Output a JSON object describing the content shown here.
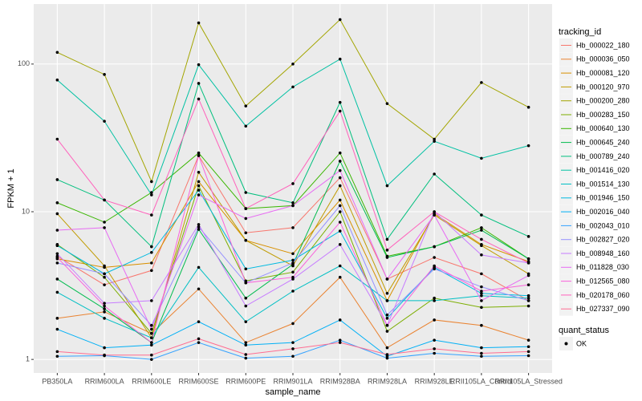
{
  "chart_data": {
    "type": "line",
    "x_label": "sample_name",
    "y_label": "FPKM + 1",
    "legend_title": "tracking_id",
    "shape_legend": {
      "title": "quant_status",
      "entries": [
        "OK"
      ]
    },
    "log_scale": true,
    "grid": true,
    "categories": [
      "PB350LA",
      "RRIM600LA",
      "RRIM600LE",
      "RRIM600SE",
      "RRIM600PE",
      "RRIM901LA",
      "RRIM928BA",
      "RRIM928LA",
      "RRIM928LE",
      "RRII105LA_Control",
      "RRII105LA_Stressed"
    ],
    "ylim": [
      0.81,
      255
    ],
    "yticks": [
      1,
      10,
      100
    ],
    "series": [
      {
        "name": "Hb_000022_180",
        "color": "#F8766D",
        "values": [
          5,
          3.2,
          4,
          24,
          7.2,
          7.8,
          17,
          3.5,
          4.9,
          3.8,
          2.5
        ]
      },
      {
        "name": "Hb_000036_050",
        "color": "#EA8331",
        "values": [
          1.9,
          2.1,
          1.5,
          3,
          1.3,
          1.75,
          3.6,
          1.2,
          1.85,
          1.7,
          1.35
        ]
      },
      {
        "name": "Hb_000081_120",
        "color": "#D89000",
        "values": [
          4.8,
          4.2,
          4.5,
          16,
          6.4,
          5.2,
          12,
          2.5,
          9.7,
          6,
          4.6
        ]
      },
      {
        "name": "Hb_000120_970",
        "color": "#C09B00",
        "values": [
          9.7,
          4.3,
          1.4,
          18.5,
          6.4,
          4.3,
          15,
          2.8,
          9.5,
          5.9,
          3.8
        ]
      },
      {
        "name": "Hb_000200_280",
        "color": "#A3A500",
        "values": [
          120,
          85,
          16,
          190,
          52,
          100,
          200,
          54,
          31,
          75,
          51
        ]
      },
      {
        "name": "Hb_000283_150",
        "color": "#7CAE00",
        "values": [
          6,
          3.6,
          1.5,
          15,
          3.4,
          3.9,
          10,
          1.55,
          2.6,
          2.25,
          2.3
        ]
      },
      {
        "name": "Hb_000640_130",
        "color": "#39B600",
        "values": [
          11.5,
          8.5,
          13.5,
          25,
          10.5,
          11,
          25,
          5,
          5.8,
          7.8,
          4.8
        ]
      },
      {
        "name": "Hb_000645_240",
        "color": "#00BB4E",
        "values": [
          3.5,
          2.2,
          1.3,
          7.6,
          2.6,
          4.4,
          22,
          4.9,
          5.8,
          7.5,
          4.8
        ]
      },
      {
        "name": "Hb_000789_240",
        "color": "#00BF7D",
        "values": [
          16.5,
          12,
          5.8,
          74,
          13.5,
          11.5,
          55,
          6.5,
          18,
          9.5,
          6.8
        ]
      },
      {
        "name": "Hb_001416_020",
        "color": "#00C1A3",
        "values": [
          78,
          41,
          13,
          99,
          38,
          70,
          108,
          15,
          30,
          23,
          28
        ]
      },
      {
        "name": "Hb_001514_130",
        "color": "#00BFC4",
        "values": [
          2.85,
          1.9,
          1.4,
          4.2,
          1.8,
          2.9,
          4.3,
          2.5,
          2.5,
          2.7,
          2.6
        ]
      },
      {
        "name": "Hb_001946_150",
        "color": "#00BAE0",
        "values": [
          5.9,
          3.8,
          5.3,
          14,
          4.1,
          4.7,
          7.4,
          1.9,
          4.2,
          2.8,
          2.7
        ]
      },
      {
        "name": "Hb_002016_040",
        "color": "#00B0F6",
        "values": [
          1.6,
          1.2,
          1.25,
          1.8,
          1.25,
          1.3,
          1.85,
          1.05,
          1.35,
          1.2,
          1.22
        ]
      },
      {
        "name": "Hb_002043_010",
        "color": "#35A2FF",
        "values": [
          1.05,
          1.06,
          1,
          1.3,
          1.02,
          1.05,
          1.35,
          1.02,
          1.1,
          1.05,
          1.06
        ]
      },
      {
        "name": "Hb_002827_020",
        "color": "#9590FF",
        "values": [
          4.5,
          3.8,
          1.7,
          7.9,
          3.3,
          4.5,
          11,
          2,
          4.1,
          3.1,
          2.5
        ]
      },
      {
        "name": "Hb_008948_160",
        "color": "#C77CFF",
        "values": [
          5.2,
          2.4,
          2.5,
          8.2,
          2.3,
          3.5,
          6,
          1.7,
          10,
          5.1,
          4.5
        ]
      },
      {
        "name": "Hb_011828_030",
        "color": "#E76BF3",
        "values": [
          7.5,
          7.8,
          1.6,
          13,
          9,
          11,
          19,
          3.5,
          9.5,
          2.5,
          3.7
        ]
      },
      {
        "name": "Hb_012565_080",
        "color": "#FA62DB",
        "values": [
          4.9,
          2.3,
          1.3,
          24,
          3.3,
          3.6,
          8.5,
          1.7,
          4.3,
          2.9,
          3.2
        ]
      },
      {
        "name": "Hb_020178_060",
        "color": "#FF62BC",
        "values": [
          31,
          12,
          9.5,
          58,
          10.5,
          15.5,
          48,
          5.5,
          10,
          6.5,
          4.5
        ]
      },
      {
        "name": "Hb_027337_090",
        "color": "#FF6C91",
        "values": [
          1.13,
          1.07,
          1.07,
          1.38,
          1.08,
          1.18,
          1.3,
          1.08,
          1.18,
          1.1,
          1.13
        ]
      }
    ]
  }
}
